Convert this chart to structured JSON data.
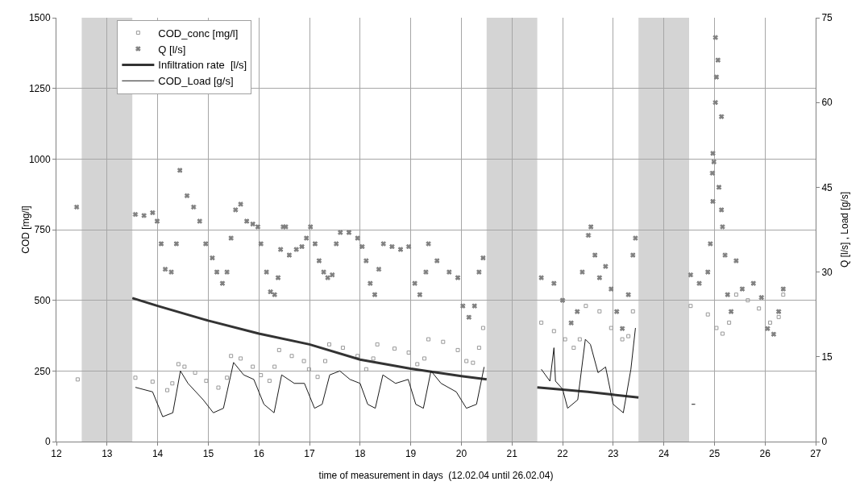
{
  "chart_data": {
    "type": "scatter",
    "xlabel": "time of measurement in days  (12.02.04 until 26.02.04)",
    "ylabel": "COD [mg/l]",
    "y2label": "Q [l/s] , Load [g/s]",
    "xlim": [
      12,
      27
    ],
    "xticks": [
      12,
      13,
      14,
      15,
      16,
      17,
      18,
      19,
      20,
      21,
      22,
      23,
      24,
      25,
      26,
      27
    ],
    "ylim": [
      0,
      1500
    ],
    "yticks": [
      0,
      250,
      500,
      750,
      1000,
      1250,
      1500
    ],
    "y2lim": [
      0,
      75
    ],
    "y2ticks": [
      0,
      15,
      30,
      45,
      60,
      75
    ],
    "grid": true,
    "legend": "top left",
    "bands": [
      {
        "axis": "x",
        "from": 12.5,
        "to": 13.5,
        "color": "#d4d4d4"
      },
      {
        "axis": "x",
        "from": 20.5,
        "to": 21.5,
        "color": "#d4d4d4"
      },
      {
        "axis": "x",
        "from": 23.5,
        "to": 24.5,
        "color": "#d4d4d4"
      }
    ],
    "series": [
      {
        "name": "COD_conc [mg/l]",
        "type": "scatter",
        "marker": "square",
        "color": "#999999",
        "x": [
          12.42,
          13.56,
          13.9,
          14.19,
          14.29,
          14.41,
          14.53,
          14.74,
          14.96,
          15.2,
          15.37,
          15.45,
          15.64,
          15.88,
          16.04,
          16.21,
          16.31,
          16.4,
          16.65,
          16.89,
          16.99,
          17.16,
          17.31,
          17.39,
          17.66,
          17.95,
          18.12,
          18.26,
          18.34,
          18.68,
          18.96,
          19.13,
          19.27,
          19.35,
          19.64,
          19.93,
          20.1,
          20.23,
          20.35,
          20.43,
          21.58,
          21.83,
          22.05,
          22.22,
          22.34,
          22.46,
          22.73,
          22.96,
          23.18,
          23.3,
          23.39,
          24.53,
          24.87,
          25.04,
          25.16,
          25.29,
          25.43,
          25.66,
          25.88,
          26.1,
          26.27,
          26.36
        ],
        "values": [
          220,
          226,
          212,
          182,
          206,
          274,
          265,
          244,
          215,
          191,
          226,
          303,
          294,
          265,
          235,
          215,
          265,
          324,
          303,
          285,
          256,
          229,
          285,
          344,
          332,
          303,
          256,
          294,
          344,
          329,
          315,
          274,
          294,
          362,
          353,
          324,
          285,
          279,
          332,
          402,
          421,
          391,
          362,
          332,
          362,
          480,
          461,
          402,
          362,
          373,
          461,
          480,
          450,
          402,
          382,
          421,
          520,
          500,
          471,
          421,
          441,
          520
        ]
      },
      {
        "name": "Q [l/s]",
        "type": "scatter",
        "marker": "cross",
        "color": "#808080",
        "axis": "y2",
        "x": [
          12.4,
          13.56,
          13.73,
          13.9,
          13.99,
          14.07,
          14.15,
          14.27,
          14.37,
          14.44,
          14.58,
          14.71,
          14.83,
          14.95,
          15.08,
          15.17,
          15.28,
          15.37,
          15.45,
          15.54,
          15.64,
          15.76,
          15.88,
          15.98,
          16.04,
          16.15,
          16.23,
          16.31,
          16.38,
          16.43,
          16.48,
          16.53,
          16.6,
          16.74,
          16.85,
          16.94,
          17.02,
          17.11,
          17.19,
          17.28,
          17.36,
          17.45,
          17.53,
          17.61,
          17.78,
          17.95,
          18.04,
          18.12,
          18.2,
          18.29,
          18.37,
          18.46,
          18.63,
          18.8,
          18.96,
          19.08,
          19.18,
          19.3,
          19.35,
          19.52,
          19.76,
          19.93,
          20.03,
          20.15,
          20.26,
          20.35,
          20.43,
          21.58,
          21.83,
          22.0,
          22.17,
          22.29,
          22.39,
          22.51,
          22.56,
          22.64,
          22.73,
          22.85,
          22.96,
          23.07,
          23.18,
          23.3,
          23.39,
          23.44,
          24.53,
          24.7,
          24.87,
          24.92,
          24.96,
          24.99,
          25.02,
          25.07,
          25.04,
          25.02,
          25.14,
          24.97,
          25.09,
          24.97,
          25.16,
          25.14,
          25.21,
          25.26,
          25.33,
          25.43,
          25.55,
          25.77,
          25.93,
          26.05,
          26.17,
          26.27,
          26.36
        ],
        "values": [
          41.5,
          40.2,
          40,
          40.5,
          39,
          35,
          30.5,
          30,
          35,
          48,
          43.5,
          41.5,
          39,
          35,
          32.5,
          30,
          28,
          30,
          36,
          41,
          42,
          39,
          38.5,
          38,
          35,
          30,
          26.5,
          26,
          29,
          34,
          38,
          38,
          33,
          34,
          34.5,
          36,
          38,
          35,
          32,
          30,
          29,
          29.5,
          35,
          37,
          37,
          36,
          34.5,
          32,
          28,
          26,
          30.5,
          35,
          34.5,
          34,
          34.5,
          28,
          26,
          30,
          35,
          32,
          30,
          29,
          24,
          22,
          24,
          30,
          32.5,
          29,
          28,
          25,
          21,
          23,
          30,
          36.5,
          38,
          33,
          29,
          31,
          27,
          23,
          20,
          26,
          33,
          36,
          29.5,
          28,
          30,
          35,
          47.5,
          49.5,
          71.5,
          67.5,
          64.5,
          60,
          57.5,
          51,
          45,
          42.5,
          38,
          41,
          33,
          26,
          23,
          32,
          27,
          28,
          25.5,
          20,
          19,
          23,
          27
        ]
      },
      {
        "name": "Infiltration rate  [l/s]",
        "type": "line",
        "marker": "none",
        "color": "#333333",
        "axis": "y2",
        "x": [
          13.5,
          14,
          15,
          16,
          17,
          18,
          19,
          20,
          20.5,
          21,
          21.5,
          22,
          22.5,
          23,
          23.5
        ],
        "values": [
          25.4,
          24,
          21.4,
          19.1,
          17.2,
          14.5,
          12.9,
          11.6,
          11,
          null,
          9.6,
          9.2,
          8.8,
          8.3,
          7.8
        ]
      },
      {
        "name": "COD_Load [g/s]",
        "type": "line",
        "marker": "none",
        "color": "#1a1a1a",
        "axis": "y2",
        "x": [
          13.56,
          13.9,
          14.1,
          14.3,
          14.45,
          14.6,
          14.9,
          15.1,
          15.3,
          15.5,
          15.7,
          15.9,
          16.1,
          16.3,
          16.45,
          16.7,
          16.9,
          17.1,
          17.25,
          17.4,
          17.6,
          17.8,
          18.0,
          18.15,
          18.3,
          18.45,
          18.7,
          18.95,
          19.1,
          19.25,
          19.4,
          19.6,
          19.9,
          20.1,
          20.3,
          20.45,
          21,
          21.58,
          21.75,
          21.83,
          21.86,
          22.0,
          22.1,
          22.3,
          22.45,
          22.55,
          22.7,
          22.85,
          23.0,
          23.2,
          23.35,
          23.44,
          24,
          24.55,
          24.62
        ],
        "values": [
          9.6,
          8.8,
          4.4,
          5.1,
          12.5,
          10.3,
          7.4,
          5.1,
          5.9,
          14,
          11.8,
          11,
          6.6,
          5.1,
          11.8,
          10.3,
          10.3,
          5.9,
          6.6,
          11.8,
          12.5,
          11,
          10.3,
          6.6,
          5.9,
          11.8,
          10.3,
          11,
          6.6,
          5.9,
          12.5,
          10.3,
          8.8,
          5.9,
          6.6,
          13.2,
          null,
          12.8,
          10.7,
          16.6,
          10.7,
          9.3,
          5.9,
          7.4,
          18.1,
          17.2,
          12.2,
          13.2,
          6.6,
          5.1,
          12.8,
          20.1,
          null,
          6.6,
          6.6
        ]
      }
    ]
  }
}
